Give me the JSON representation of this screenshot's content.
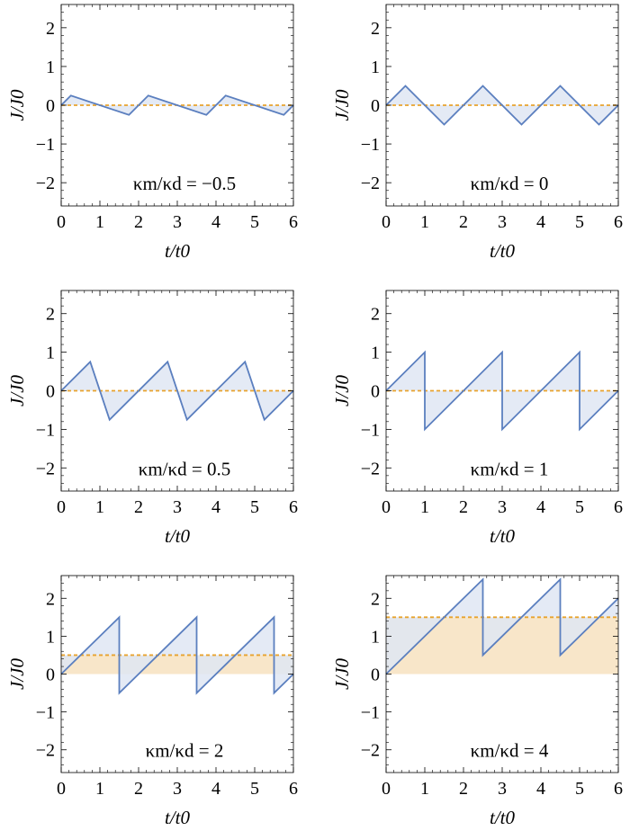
{
  "chart_data": [
    {
      "type": "line",
      "annotation": "κm/κd = −0.5",
      "xlabel": "t/t0",
      "ylabel": "J/J0",
      "xlim": [
        0,
        6
      ],
      "ylim": [
        -2.6,
        2.6
      ],
      "xticks": [
        "0",
        "1",
        "2",
        "3",
        "4",
        "5",
        "6"
      ],
      "yticks": [
        "−2",
        "−1",
        "0",
        "1",
        "2"
      ],
      "x": [
        0,
        0.25,
        1.75,
        2.25,
        3.75,
        4.25,
        5.75,
        6
      ],
      "y": [
        0,
        0.25,
        -0.25,
        0.25,
        -0.25,
        0.25,
        -0.25,
        0
      ],
      "mean": 0
    },
    {
      "type": "line",
      "annotation": "κm/κd = 0",
      "xlabel": "t/t0",
      "ylabel": "J/J0",
      "xlim": [
        0,
        6
      ],
      "ylim": [
        -2.6,
        2.6
      ],
      "xticks": [
        "0",
        "1",
        "2",
        "3",
        "4",
        "5",
        "6"
      ],
      "yticks": [
        "−2",
        "−1",
        "0",
        "1",
        "2"
      ],
      "x": [
        0,
        0.5,
        1.5,
        2.5,
        3.5,
        4.5,
        5.5,
        6
      ],
      "y": [
        0,
        0.5,
        -0.5,
        0.5,
        -0.5,
        0.5,
        -0.5,
        0
      ],
      "mean": 0
    },
    {
      "type": "line",
      "annotation": "κm/κd = 0.5",
      "xlabel": "t/t0",
      "ylabel": "J/J0",
      "xlim": [
        0,
        6
      ],
      "ylim": [
        -2.6,
        2.6
      ],
      "xticks": [
        "0",
        "1",
        "2",
        "3",
        "4",
        "5",
        "6"
      ],
      "yticks": [
        "−2",
        "−1",
        "0",
        "1",
        "2"
      ],
      "x": [
        0,
        0.75,
        1.25,
        2.75,
        3.25,
        4.75,
        5.25,
        6
      ],
      "y": [
        0,
        0.75,
        -0.75,
        0.75,
        -0.75,
        0.75,
        -0.75,
        0
      ],
      "mean": 0
    },
    {
      "type": "line",
      "annotation": "κm/κd = 1",
      "xlabel": "t/t0",
      "ylabel": "J/J0",
      "xlim": [
        0,
        6
      ],
      "ylim": [
        -2.6,
        2.6
      ],
      "xticks": [
        "0",
        "1",
        "2",
        "3",
        "4",
        "5",
        "6"
      ],
      "yticks": [
        "−2",
        "−1",
        "0",
        "1",
        "2"
      ],
      "x": [
        0,
        1,
        1,
        3,
        3,
        5,
        5,
        6
      ],
      "y": [
        0,
        1,
        -1,
        1,
        -1,
        1,
        -1,
        0
      ],
      "mean": 0
    },
    {
      "type": "line",
      "annotation": "κm/κd = 2",
      "xlabel": "t/t0",
      "ylabel": "J/J0",
      "xlim": [
        0,
        6
      ],
      "ylim": [
        -2.6,
        2.6
      ],
      "xticks": [
        "0",
        "1",
        "2",
        "3",
        "4",
        "5",
        "6"
      ],
      "yticks": [
        "−2",
        "−1",
        "0",
        "1",
        "2"
      ],
      "x": [
        0,
        1.5,
        1.5,
        3.5,
        3.5,
        5.5,
        5.5,
        6
      ],
      "y": [
        0,
        1.5,
        -0.5,
        1.5,
        -0.5,
        1.5,
        -0.5,
        0
      ],
      "mean": 0.5
    },
    {
      "type": "line",
      "annotation": "κm/κd = 4",
      "xlabel": "t/t0",
      "ylabel": "J/J0",
      "xlim": [
        0,
        6
      ],
      "ylim": [
        -2.6,
        2.6
      ],
      "xticks": [
        "0",
        "1",
        "2",
        "3",
        "4",
        "5",
        "6"
      ],
      "yticks": [
        "−2",
        "−1",
        "0",
        "1",
        "2"
      ],
      "x": [
        0,
        2.5,
        2.5,
        4.5,
        4.5,
        6
      ],
      "y": [
        0,
        2.5,
        0.5,
        2.5,
        0.5,
        2.0
      ],
      "mean": 1.5
    }
  ],
  "colors": {
    "curve": "#5b7fbf",
    "curve_fill": "#dfe6f3",
    "mean_line": "#e8a32e",
    "mean_fill": "#f8e6c9"
  }
}
